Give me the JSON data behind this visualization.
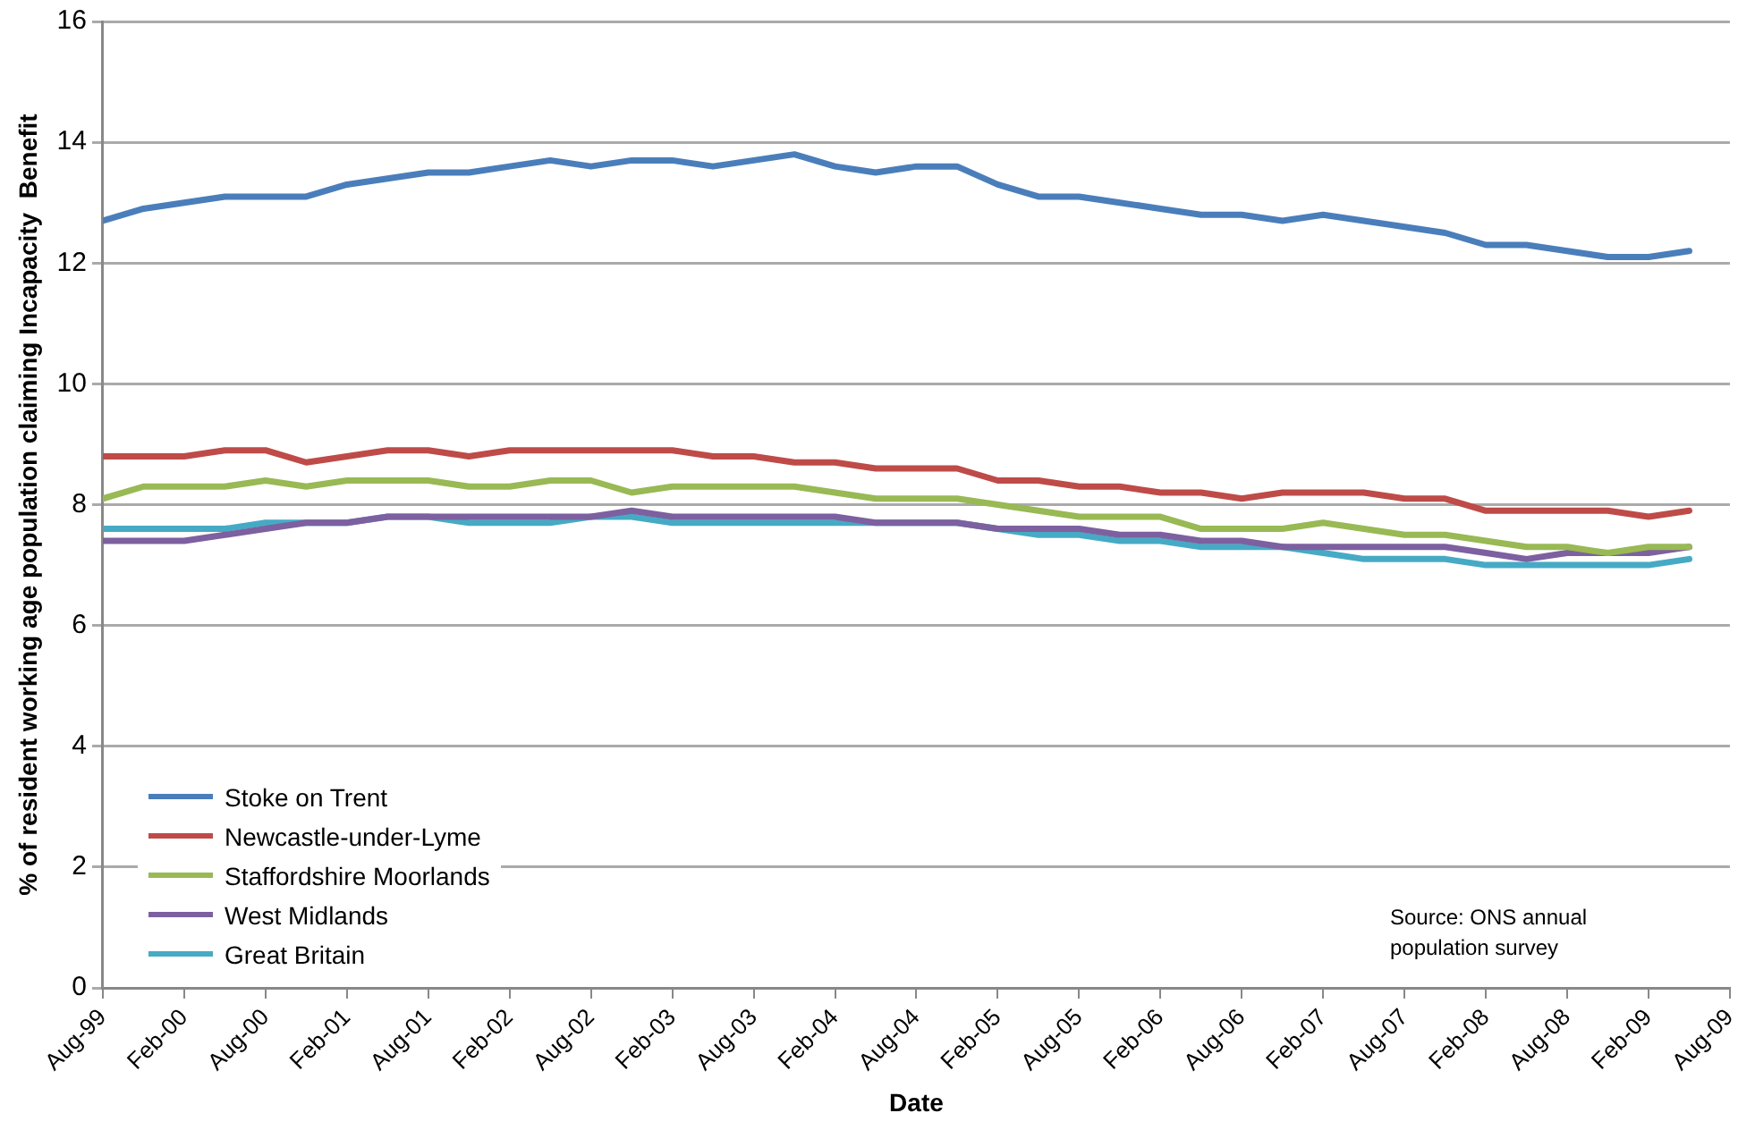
{
  "chart_data": {
    "type": "line",
    "xlabel": "Date",
    "ylabel": "% of resident working age population claiming Incapacity  Benefit",
    "x": [
      "1999-08",
      "1999-11",
      "2000-02",
      "2000-05",
      "2000-08",
      "2000-11",
      "2001-02",
      "2001-05",
      "2001-08",
      "2001-11",
      "2002-02",
      "2002-05",
      "2002-08",
      "2002-11",
      "2003-02",
      "2003-05",
      "2003-08",
      "2003-11",
      "2004-02",
      "2004-05",
      "2004-08",
      "2004-11",
      "2005-02",
      "2005-05",
      "2005-08",
      "2005-11",
      "2006-02",
      "2006-05",
      "2006-08",
      "2006-11",
      "2007-02",
      "2007-05",
      "2007-08",
      "2007-11",
      "2008-02",
      "2008-05",
      "2008-08",
      "2008-11",
      "2009-02",
      "2009-05"
    ],
    "series": [
      {
        "name": "Stoke on Trent",
        "color": "#4a7ebb",
        "values": [
          12.7,
          12.9,
          13.0,
          13.1,
          13.1,
          13.1,
          13.3,
          13.4,
          13.5,
          13.5,
          13.6,
          13.7,
          13.6,
          13.7,
          13.7,
          13.6,
          13.7,
          13.8,
          13.6,
          13.5,
          13.6,
          13.6,
          13.3,
          13.1,
          13.1,
          13.0,
          12.9,
          12.8,
          12.8,
          12.7,
          12.8,
          12.7,
          12.6,
          12.5,
          12.3,
          12.3,
          12.2,
          12.1,
          12.1,
          12.2
        ]
      },
      {
        "name": "Newcastle-under-Lyme",
        "color": "#be4b48",
        "values": [
          8.8,
          8.8,
          8.8,
          8.9,
          8.9,
          8.7,
          8.8,
          8.9,
          8.9,
          8.8,
          8.9,
          8.9,
          8.9,
          8.9,
          8.9,
          8.8,
          8.8,
          8.7,
          8.7,
          8.6,
          8.6,
          8.6,
          8.4,
          8.4,
          8.3,
          8.3,
          8.2,
          8.2,
          8.1,
          8.2,
          8.2,
          8.2,
          8.1,
          8.1,
          7.9,
          7.9,
          7.9,
          7.9,
          7.8,
          7.9
        ]
      },
      {
        "name": "Staffordshire Moorlands",
        "color": "#98b954",
        "values": [
          8.1,
          8.3,
          8.3,
          8.3,
          8.4,
          8.3,
          8.4,
          8.4,
          8.4,
          8.3,
          8.3,
          8.4,
          8.4,
          8.2,
          8.3,
          8.3,
          8.3,
          8.3,
          8.2,
          8.1,
          8.1,
          8.1,
          8.0,
          7.9,
          7.8,
          7.8,
          7.8,
          7.6,
          7.6,
          7.6,
          7.7,
          7.6,
          7.5,
          7.5,
          7.4,
          7.3,
          7.3,
          7.2,
          7.3,
          7.3
        ]
      },
      {
        "name": "West Midlands",
        "color": "#7d60a0",
        "values": [
          7.4,
          7.4,
          7.4,
          7.5,
          7.6,
          7.7,
          7.7,
          7.8,
          7.8,
          7.8,
          7.8,
          7.8,
          7.8,
          7.9,
          7.8,
          7.8,
          7.8,
          7.8,
          7.8,
          7.7,
          7.7,
          7.7,
          7.6,
          7.6,
          7.6,
          7.5,
          7.5,
          7.4,
          7.4,
          7.3,
          7.3,
          7.3,
          7.3,
          7.3,
          7.2,
          7.1,
          7.2,
          7.2,
          7.2,
          7.3
        ]
      },
      {
        "name": "Great Britain",
        "color": "#46aac5",
        "values": [
          7.6,
          7.6,
          7.6,
          7.6,
          7.7,
          7.7,
          7.7,
          7.8,
          7.8,
          7.7,
          7.7,
          7.7,
          7.8,
          7.8,
          7.7,
          7.7,
          7.7,
          7.7,
          7.7,
          7.7,
          7.7,
          7.7,
          7.6,
          7.5,
          7.5,
          7.4,
          7.4,
          7.3,
          7.3,
          7.3,
          7.2,
          7.1,
          7.1,
          7.1,
          7.0,
          7.0,
          7.0,
          7.0,
          7.0,
          7.1
        ]
      }
    ],
    "xlim": [
      "1999-08",
      "2009-08"
    ],
    "xticks": [
      {
        "value": "1999-08",
        "label": "Aug-99"
      },
      {
        "value": "2000-02",
        "label": "Feb-00"
      },
      {
        "value": "2000-08",
        "label": "Aug-00"
      },
      {
        "value": "2001-02",
        "label": "Feb-01"
      },
      {
        "value": "2001-08",
        "label": "Aug-01"
      },
      {
        "value": "2002-02",
        "label": "Feb-02"
      },
      {
        "value": "2002-08",
        "label": "Aug-02"
      },
      {
        "value": "2003-02",
        "label": "Feb-03"
      },
      {
        "value": "2003-08",
        "label": "Aug-03"
      },
      {
        "value": "2004-02",
        "label": "Feb-04"
      },
      {
        "value": "2004-08",
        "label": "Aug-04"
      },
      {
        "value": "2005-02",
        "label": "Feb-05"
      },
      {
        "value": "2005-08",
        "label": "Aug-05"
      },
      {
        "value": "2006-02",
        "label": "Feb-06"
      },
      {
        "value": "2006-08",
        "label": "Aug-06"
      },
      {
        "value": "2007-02",
        "label": "Feb-07"
      },
      {
        "value": "2007-08",
        "label": "Aug-07"
      },
      {
        "value": "2008-02",
        "label": "Feb-08"
      },
      {
        "value": "2008-08",
        "label": "Aug-08"
      },
      {
        "value": "2009-02",
        "label": "Feb-09"
      },
      {
        "value": "2009-08",
        "label": "Aug-09"
      }
    ],
    "ylim": [
      0,
      16
    ],
    "yticks": [
      0,
      2,
      4,
      6,
      8,
      10,
      12,
      14,
      16
    ],
    "grid": "y",
    "legend": "bottom left",
    "annotations": [
      "Source: ONS annual population survey"
    ]
  }
}
